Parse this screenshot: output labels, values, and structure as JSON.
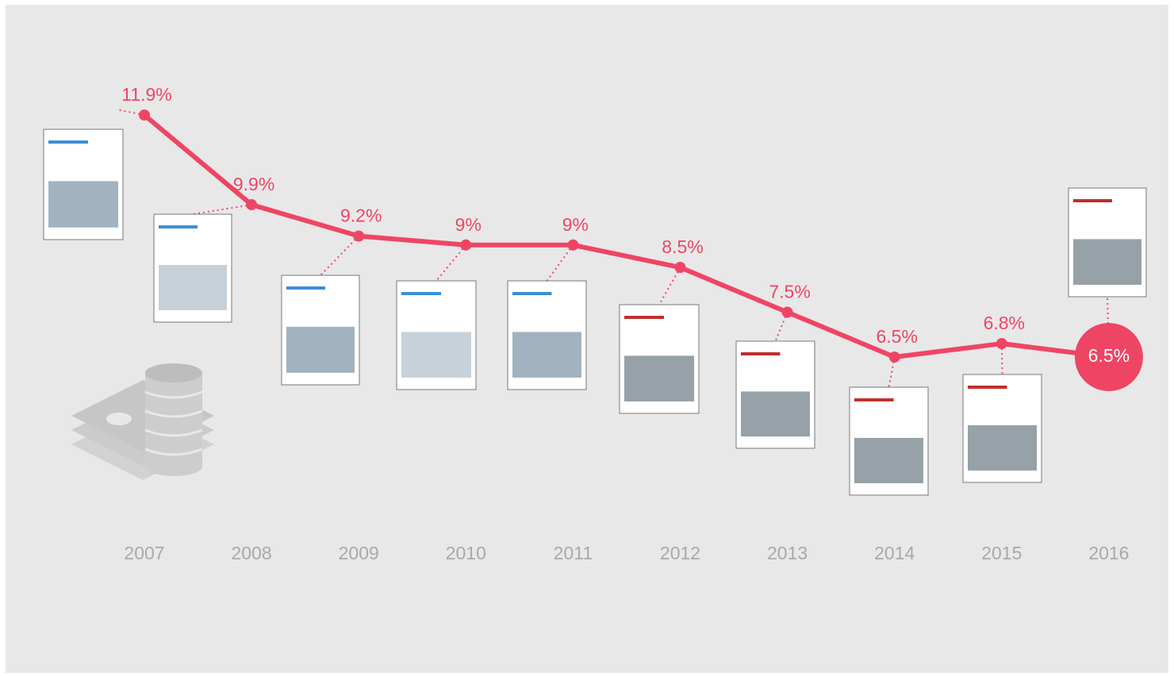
{
  "chart_data": {
    "type": "line",
    "categories": [
      "2007",
      "2008",
      "2009",
      "2010",
      "2011",
      "2012",
      "2013",
      "2014",
      "2015",
      "2016"
    ],
    "values": [
      11.9,
      9.9,
      9.2,
      9,
      9,
      8.5,
      7.5,
      6.5,
      6.8,
      6.5
    ],
    "value_labels": [
      "11.9%",
      "9.9%",
      "9.2%",
      "9%",
      "9%",
      "8.5%",
      "7.5%",
      "6.5%",
      "6.8%",
      "6.5%"
    ],
    "color": "#ef4565"
  }
}
